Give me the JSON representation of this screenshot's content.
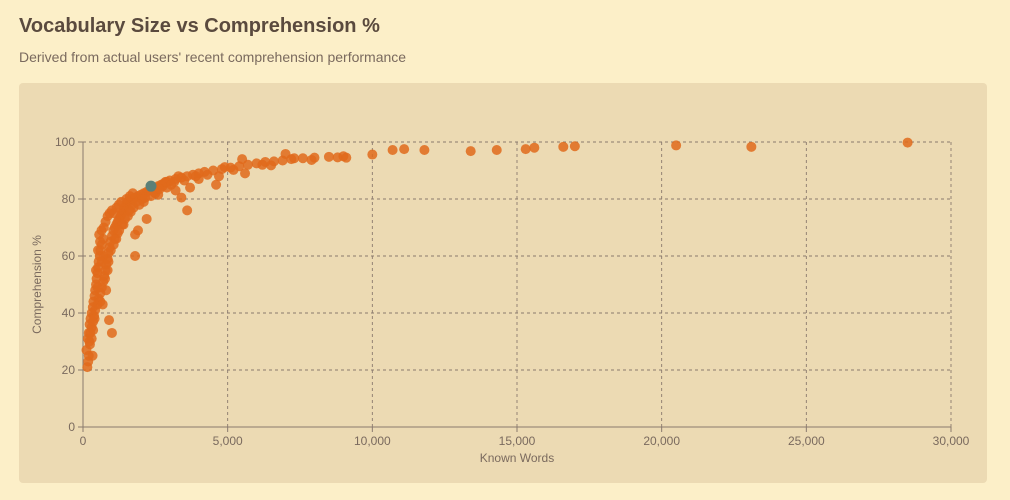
{
  "header": {
    "title": "Vocabulary Size vs Comprehension %",
    "subtitle": "Derived from actual users' recent comprehension performance"
  },
  "colors": {
    "background": "#fcefc8",
    "card": "#ecdab3",
    "point": "#e06a1b",
    "highlight": "#5c8078",
    "grid": "#8a7a6e",
    "axis": "#8a7a6e"
  },
  "chart_data": {
    "type": "scatter",
    "title": "",
    "xlabel": "Known Words",
    "ylabel": "Comprehension %",
    "xlim": [
      0,
      30000
    ],
    "ylim": [
      0,
      100
    ],
    "x_ticks": [
      0,
      5000,
      10000,
      15000,
      20000,
      25000,
      30000
    ],
    "x_tick_labels": [
      "0",
      "5,000",
      "10,000",
      "15,000",
      "20,000",
      "25,000",
      "30,000"
    ],
    "y_ticks": [
      0,
      20,
      40,
      60,
      80,
      100
    ],
    "y_tick_labels": [
      "0",
      "20",
      "40",
      "60",
      "80",
      "100"
    ],
    "grid": true,
    "legend": "none",
    "series": [
      {
        "points": [
          [
            150,
            21
          ],
          [
            180,
            23
          ],
          [
            200,
            25
          ],
          [
            240,
            29
          ],
          [
            120,
            27
          ],
          [
            170,
            31
          ],
          [
            200,
            33
          ],
          [
            230,
            36
          ],
          [
            260,
            38
          ],
          [
            300,
            40
          ],
          [
            340,
            42
          ],
          [
            360,
            44
          ],
          [
            400,
            46
          ],
          [
            420,
            48
          ],
          [
            450,
            50
          ],
          [
            470,
            52
          ],
          [
            500,
            54
          ],
          [
            520,
            56
          ],
          [
            540,
            58
          ],
          [
            580,
            60
          ],
          [
            600,
            62
          ],
          [
            650,
            64
          ],
          [
            700,
            66
          ],
          [
            560,
            67.5
          ],
          [
            300,
            35
          ],
          [
            350,
            37
          ],
          [
            380,
            39
          ],
          [
            420,
            41
          ],
          [
            500,
            43
          ],
          [
            540,
            45
          ],
          [
            600,
            47
          ],
          [
            650,
            49
          ],
          [
            700,
            51
          ],
          [
            730,
            53
          ],
          [
            780,
            55
          ],
          [
            800,
            57
          ],
          [
            850,
            59
          ],
          [
            880,
            61
          ],
          [
            920,
            63
          ],
          [
            950,
            65
          ],
          [
            1000,
            67
          ],
          [
            1050,
            69
          ],
          [
            1100,
            70
          ],
          [
            1150,
            71
          ],
          [
            1200,
            72
          ],
          [
            1250,
            73
          ],
          [
            1300,
            74
          ],
          [
            1350,
            75
          ],
          [
            1400,
            76
          ],
          [
            1450,
            77
          ],
          [
            1500,
            78
          ],
          [
            1550,
            79
          ],
          [
            1600,
            79.5
          ],
          [
            1700,
            80
          ],
          [
            1800,
            80.5
          ],
          [
            1900,
            81
          ],
          [
            2000,
            81.5
          ],
          [
            2100,
            82
          ],
          [
            2200,
            82.5
          ],
          [
            2300,
            83
          ],
          [
            2400,
            83.5
          ],
          [
            2500,
            84
          ],
          [
            2600,
            84.5
          ],
          [
            2700,
            85
          ],
          [
            2800,
            85.5
          ],
          [
            2900,
            86
          ],
          [
            3000,
            86.5
          ],
          [
            3200,
            87
          ],
          [
            3400,
            87.5
          ],
          [
            3600,
            88
          ],
          [
            3800,
            88.5
          ],
          [
            4000,
            89
          ],
          [
            4200,
            89.5
          ],
          [
            4500,
            90
          ],
          [
            4800,
            90.5
          ],
          [
            5100,
            91
          ],
          [
            5400,
            91.5
          ],
          [
            5700,
            92
          ],
          [
            6000,
            92.5
          ],
          [
            6300,
            93
          ],
          [
            6600,
            93.2
          ],
          [
            6900,
            93.5
          ],
          [
            7200,
            94
          ],
          [
            7600,
            94.3
          ],
          [
            8000,
            94.5
          ],
          [
            8500,
            94.8
          ],
          [
            9000,
            95
          ],
          [
            10000,
            95.6
          ],
          [
            10700,
            97.2
          ],
          [
            11100,
            97.5
          ],
          [
            11800,
            97.2
          ],
          [
            13400,
            96.8
          ],
          [
            14300,
            97.2
          ],
          [
            15300,
            97.5
          ],
          [
            15600,
            98
          ],
          [
            16600,
            98.3
          ],
          [
            17000,
            98.5
          ],
          [
            20500,
            98.8
          ],
          [
            23100,
            98.3
          ],
          [
            28500,
            99.8
          ],
          [
            900,
            37.5
          ],
          [
            1000,
            33
          ],
          [
            800,
            48
          ],
          [
            850,
            55
          ],
          [
            1800,
            60
          ],
          [
            2200,
            73
          ],
          [
            1900,
            69
          ],
          [
            1800,
            67.5
          ],
          [
            1400,
            71
          ],
          [
            1600,
            76
          ],
          [
            3400,
            80.5
          ],
          [
            3600,
            76
          ],
          [
            4600,
            85
          ],
          [
            4700,
            88
          ],
          [
            5500,
            94
          ],
          [
            5600,
            89
          ],
          [
            6500,
            91.8
          ],
          [
            7000,
            95.8
          ],
          [
            7900,
            93.7
          ],
          [
            8800,
            94.6
          ],
          [
            4000,
            87
          ],
          [
            3700,
            84
          ],
          [
            3200,
            83
          ],
          [
            2900,
            84
          ],
          [
            2600,
            81.5
          ],
          [
            2500,
            82
          ],
          [
            2100,
            79
          ],
          [
            1700,
            78
          ],
          [
            1200,
            68
          ],
          [
            1100,
            66
          ],
          [
            700,
            60
          ],
          [
            650,
            58
          ],
          [
            500,
            49
          ],
          [
            400,
            38
          ],
          [
            350,
            34
          ],
          [
            300,
            31
          ],
          [
            250,
            33
          ],
          [
            220,
            30
          ],
          [
            330,
            25
          ],
          [
            600,
            44
          ],
          [
            680,
            43
          ],
          [
            760,
            52
          ],
          [
            880,
            58
          ],
          [
            960,
            62
          ],
          [
            1060,
            64
          ],
          [
            1150,
            66
          ],
          [
            1250,
            69
          ],
          [
            1350,
            71
          ],
          [
            1450,
            73
          ],
          [
            1550,
            74
          ],
          [
            1650,
            75.5
          ],
          [
            1750,
            77
          ],
          [
            1850,
            79
          ],
          [
            1950,
            78
          ],
          [
            2050,
            80
          ],
          [
            2150,
            80.5
          ],
          [
            2350,
            81
          ],
          [
            2450,
            82.5
          ],
          [
            2650,
            83.5
          ],
          [
            2750,
            84.5
          ],
          [
            2850,
            86
          ],
          [
            3050,
            85
          ],
          [
            3150,
            86
          ],
          [
            3300,
            88
          ],
          [
            3500,
            86.5
          ],
          [
            3900,
            88
          ],
          [
            4300,
            88.5
          ],
          [
            4900,
            91.2
          ],
          [
            5200,
            90.2
          ],
          [
            6200,
            92
          ],
          [
            7300,
            94.3
          ],
          [
            9100,
            94.5
          ],
          [
            450,
            55
          ],
          [
            520,
            62
          ],
          [
            590,
            65
          ],
          [
            640,
            69
          ],
          [
            720,
            70
          ],
          [
            780,
            72
          ],
          [
            850,
            74
          ],
          [
            920,
            75
          ],
          [
            1000,
            76
          ],
          [
            1080,
            75
          ],
          [
            1160,
            77
          ],
          [
            1240,
            78
          ],
          [
            1320,
            79
          ],
          [
            1500,
            80
          ],
          [
            1620,
            81
          ],
          [
            1720,
            82
          ]
        ]
      }
    ],
    "highlight_point": [
      2350,
      84.5
    ]
  }
}
